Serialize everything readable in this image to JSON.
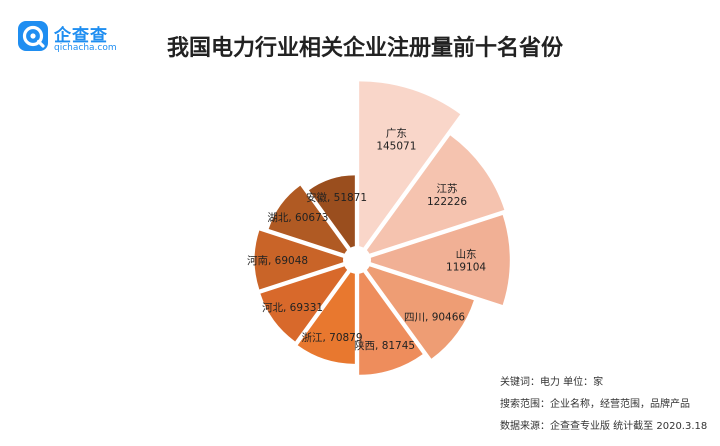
{
  "brand": {
    "name": "企查查",
    "domain": "qichacha.com",
    "color": "#1f8ef1"
  },
  "title": "我国电力行业相关企业注册量前十名省份",
  "notes": [
    "关键词：电力  单位：家",
    "搜索范围：企业名称，经营范围，品牌产品",
    "数据来源：企查查专业版  统计截至 2020.3.18"
  ],
  "chart_data": {
    "type": "pie",
    "title": "我国电力行业相关企业注册量前十名省份",
    "unit": "家",
    "categories": [
      "广东",
      "江苏",
      "山东",
      "四川",
      "陕西",
      "浙江",
      "河北",
      "河南",
      "湖北",
      "安徽"
    ],
    "values": [
      145071,
      122226,
      119104,
      90466,
      81745,
      70879,
      69331,
      69048,
      60673,
      51871
    ],
    "labels": [
      {
        "lines": [
          "广东",
          "145071"
        ]
      },
      {
        "lines": [
          "江苏",
          "122226"
        ]
      },
      {
        "lines": [
          "山东",
          "119104"
        ]
      },
      {
        "lines": [
          "四川, 90466"
        ]
      },
      {
        "lines": [
          "陕西, 81745"
        ]
      },
      {
        "lines": [
          "浙江, 70879"
        ]
      },
      {
        "lines": [
          "河北, 69331"
        ]
      },
      {
        "lines": [
          "河南, 69048"
        ]
      },
      {
        "lines": [
          "湖北, 60673"
        ]
      },
      {
        "lines": [
          "安徽, 51871"
        ]
      }
    ],
    "colors": [
      "#f9d6c9",
      "#f5c3af",
      "#f1b095",
      "#ee9d74",
      "#ee8d5c",
      "#e8782f",
      "#d8692b",
      "#c96428",
      "#b05a23",
      "#9a4e1e"
    ],
    "style": "rose (equal angles, radius proportional to value), exploded slices"
  }
}
